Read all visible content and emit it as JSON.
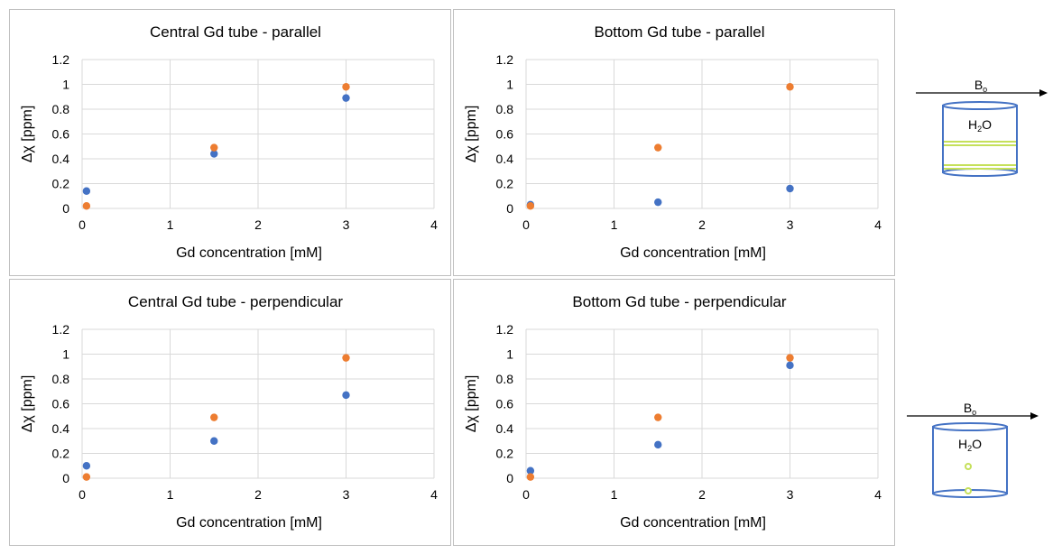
{
  "chart_data": [
    {
      "type": "scatter",
      "title": "Central Gd tube - parallel",
      "xlabel": "Gd concentration [mM]",
      "ylabel": "Δχ [ppm]",
      "xlim": [
        0,
        4
      ],
      "ylim": [
        0,
        1.2
      ],
      "xticks": [
        "0",
        "1",
        "2",
        "3",
        "4"
      ],
      "yticks": [
        "0",
        "0.2",
        "0.4",
        "0.6",
        "0.8",
        "1",
        "1.2"
      ],
      "grid": true,
      "series": [
        {
          "color": "#4472c4",
          "points": [
            [
              0.05,
              0.14
            ],
            [
              1.5,
              0.44
            ],
            [
              3,
              0.89
            ]
          ]
        },
        {
          "color": "#ed7d31",
          "points": [
            [
              0.05,
              0.02
            ],
            [
              1.5,
              0.49
            ],
            [
              3,
              0.98
            ]
          ]
        }
      ]
    },
    {
      "type": "scatter",
      "title": "Bottom Gd tube - parallel",
      "xlabel": "Gd concentration [mM]",
      "ylabel": "Δχ [ppm]",
      "xlim": [
        0,
        4
      ],
      "ylim": [
        0,
        1.2
      ],
      "xticks": [
        "0",
        "1",
        "2",
        "3",
        "4"
      ],
      "yticks": [
        "0",
        "0.2",
        "0.4",
        "0.6",
        "0.8",
        "1",
        "1.2"
      ],
      "grid": true,
      "series": [
        {
          "color": "#4472c4",
          "points": [
            [
              0.05,
              0.03
            ],
            [
              1.5,
              0.05
            ],
            [
              3,
              0.16
            ]
          ]
        },
        {
          "color": "#ed7d31",
          "points": [
            [
              0.05,
              0.02
            ],
            [
              1.5,
              0.49
            ],
            [
              3,
              0.98
            ]
          ]
        }
      ]
    },
    {
      "type": "scatter",
      "title": "Central Gd tube - perpendicular",
      "xlabel": "Gd concentration [mM]",
      "ylabel": "Δχ [ppm]",
      "xlim": [
        0,
        4
      ],
      "ylim": [
        0,
        1.2
      ],
      "xticks": [
        "0",
        "1",
        "2",
        "3",
        "4"
      ],
      "yticks": [
        "0",
        "0.2",
        "0.4",
        "0.6",
        "0.8",
        "1",
        "1.2"
      ],
      "grid": true,
      "series": [
        {
          "color": "#4472c4",
          "points": [
            [
              0.05,
              0.1
            ],
            [
              1.5,
              0.3
            ],
            [
              3,
              0.67
            ]
          ]
        },
        {
          "color": "#ed7d31",
          "points": [
            [
              0.05,
              0.01
            ],
            [
              1.5,
              0.49
            ],
            [
              3,
              0.97
            ]
          ]
        }
      ]
    },
    {
      "type": "scatter",
      "title": "Bottom Gd tube - perpendicular",
      "xlabel": "Gd concentration [mM]",
      "ylabel": "Δχ [ppm]",
      "xlim": [
        0,
        4
      ],
      "ylim": [
        0,
        1.2
      ],
      "xticks": [
        "0",
        "1",
        "2",
        "3",
        "4"
      ],
      "yticks": [
        "0",
        "0.2",
        "0.4",
        "0.6",
        "0.8",
        "1",
        "1.2"
      ],
      "grid": true,
      "series": [
        {
          "color": "#4472c4",
          "points": [
            [
              0.05,
              0.06
            ],
            [
              1.5,
              0.27
            ],
            [
              3,
              0.91
            ]
          ]
        },
        {
          "color": "#ed7d31",
          "points": [
            [
              0.05,
              0.01
            ],
            [
              1.5,
              0.49
            ],
            [
              3,
              0.97
            ]
          ]
        }
      ]
    }
  ],
  "diagrams": {
    "parallel": {
      "field_label": "B",
      "field_sub": "o",
      "water_label": "H",
      "water_sub": "2",
      "water_tail": "O"
    },
    "perpendicular": {
      "field_label": "B",
      "field_sub": "o",
      "water_label": "H",
      "water_sub": "2",
      "water_tail": "O"
    }
  },
  "colors": {
    "tube_outline": "#4472c4",
    "tube_lines": "#c5e05a",
    "grid": "#d9d9d9"
  }
}
